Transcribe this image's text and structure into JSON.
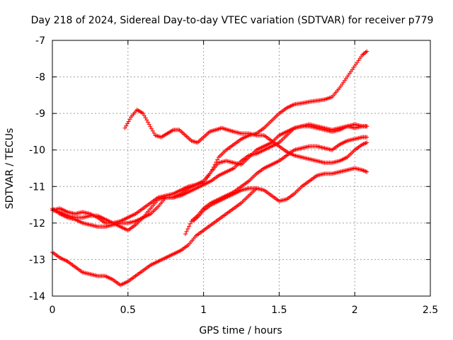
{
  "chart_data": {
    "type": "scatter",
    "title": "Day 218 of 2024, Sidereal Day-to-day VTEC variation (SDTVAR) for receiver p779",
    "xlabel": "GPS time / hours",
    "ylabel": "SDTVAR / TECUs",
    "xlim": [
      0,
      2.5
    ],
    "ylim": [
      -14,
      -7
    ],
    "xticks": [
      "0",
      "0.5",
      "1",
      "1.5",
      "2",
      "2.5"
    ],
    "yticks": [
      "-7",
      "-8",
      "-9",
      "-10",
      "-11",
      "-12",
      "-13",
      "-14"
    ],
    "xtick_values": [
      0,
      0.5,
      1,
      1.5,
      2,
      2.5
    ],
    "ytick_values": [
      -7,
      -8,
      -9,
      -10,
      -11,
      -12,
      -13,
      -14
    ],
    "grid": true,
    "legend": "none",
    "marker": "+",
    "marker_color": "#ff0000",
    "series": [
      {
        "x": [
          0,
          0.05,
          0.1,
          0.15,
          0.2,
          0.25,
          0.3,
          0.35,
          0.4,
          0.45,
          0.5,
          0.55,
          0.6,
          0.65,
          0.7,
          0.75,
          0.8,
          0.85,
          0.9,
          0.95,
          1.0,
          1.05,
          1.1,
          1.15,
          1.2,
          1.25,
          1.3,
          1.35,
          1.4,
          1.45,
          1.5,
          1.55,
          1.6,
          1.65,
          1.7,
          1.75,
          1.8,
          1.85,
          1.9,
          1.95,
          2.0,
          2.05,
          2.08
        ],
        "y": [
          -11.65,
          -11.6,
          -11.7,
          -11.75,
          -11.7,
          -11.75,
          -11.85,
          -12.0,
          -12.0,
          -11.95,
          -11.85,
          -11.75,
          -11.6,
          -11.45,
          -11.3,
          -11.25,
          -11.2,
          -11.1,
          -11.0,
          -10.95,
          -10.9,
          -10.6,
          -10.2,
          -10.0,
          -9.85,
          -9.7,
          -9.6,
          -9.55,
          -9.4,
          -9.2,
          -9.0,
          -8.85,
          -8.75,
          -8.72,
          -8.68,
          -8.65,
          -8.62,
          -8.55,
          -8.3,
          -8.0,
          -7.7,
          -7.4,
          -7.3
        ]
      },
      {
        "x": [
          0,
          0.05,
          0.1,
          0.15,
          0.2,
          0.25,
          0.3,
          0.35,
          0.4,
          0.45,
          0.5,
          0.55,
          0.6,
          0.65,
          0.7,
          0.75,
          0.8,
          0.85,
          0.9,
          0.95,
          1.0,
          1.05,
          1.1,
          1.15,
          1.2,
          1.25,
          1.3,
          1.35,
          1.4,
          1.45,
          1.5,
          1.55,
          1.6,
          1.65,
          1.7,
          1.75,
          1.8,
          1.85,
          1.9,
          1.95,
          2.0,
          2.05,
          2.08
        ],
        "y": [
          -11.6,
          -11.75,
          -11.85,
          -11.9,
          -12.0,
          -12.05,
          -12.1,
          -12.1,
          -12.05,
          -12.0,
          -12.0,
          -11.95,
          -11.85,
          -11.6,
          -11.35,
          -11.3,
          -11.3,
          -11.2,
          -11.05,
          -10.95,
          -10.85,
          -10.6,
          -10.35,
          -10.3,
          -10.35,
          -10.4,
          -10.2,
          -10.0,
          -9.9,
          -9.8,
          -9.6,
          -9.5,
          -9.4,
          -9.35,
          -9.35,
          -9.4,
          -9.45,
          -9.5,
          -9.45,
          -9.35,
          -9.3,
          -9.35,
          -9.35
        ]
      },
      {
        "x": [
          0,
          0.05,
          0.1,
          0.15,
          0.2,
          0.25,
          0.3,
          0.35,
          0.4,
          0.45,
          0.5,
          0.55,
          0.6,
          0.65,
          0.7,
          0.75,
          0.8,
          0.85,
          0.9,
          0.95,
          1.0,
          1.05,
          1.1,
          1.15,
          1.2,
          1.25,
          1.3,
          1.35,
          1.4,
          1.45,
          1.5,
          1.55,
          1.6,
          1.65,
          1.7,
          1.75,
          1.8,
          1.85,
          1.9,
          1.95,
          2.0,
          2.05,
          2.08
        ],
        "y": [
          -11.65,
          -11.7,
          -11.8,
          -11.85,
          -11.85,
          -11.8,
          -11.8,
          -11.9,
          -12.0,
          -12.1,
          -12.2,
          -12.05,
          -11.85,
          -11.75,
          -11.55,
          -11.3,
          -11.3,
          -11.25,
          -11.15,
          -11.05,
          -10.95,
          -10.85,
          -10.7,
          -10.6,
          -10.5,
          -10.3,
          -10.15,
          -10.1,
          -10.0,
          -9.9,
          -9.8,
          -9.6,
          -9.4,
          -9.35,
          -9.3,
          -9.35,
          -9.4,
          -9.45,
          -9.4,
          -9.35,
          -9.4,
          -9.35,
          -9.35
        ]
      },
      {
        "x": [
          0.48,
          0.52,
          0.56,
          0.6,
          0.64,
          0.68,
          0.72,
          0.76,
          0.8,
          0.84,
          0.88,
          0.92,
          0.96,
          1.0,
          1.04,
          1.08,
          1.12,
          1.16,
          1.2,
          1.25,
          1.3,
          1.35,
          1.4,
          1.45,
          1.5,
          1.55,
          1.6,
          1.65,
          1.7,
          1.75,
          1.8,
          1.85,
          1.9,
          1.95,
          2.0,
          2.05,
          2.08
        ],
        "y": [
          -9.4,
          -9.1,
          -8.9,
          -9.0,
          -9.3,
          -9.6,
          -9.65,
          -9.55,
          -9.45,
          -9.45,
          -9.6,
          -9.75,
          -9.8,
          -9.65,
          -9.5,
          -9.45,
          -9.4,
          -9.45,
          -9.5,
          -9.55,
          -9.55,
          -9.6,
          -9.6,
          -9.75,
          -9.9,
          -10.05,
          -10.15,
          -10.2,
          -10.25,
          -10.3,
          -10.35,
          -10.35,
          -10.3,
          -10.2,
          -10.0,
          -9.85,
          -9.8
        ]
      },
      {
        "x": [
          0.88,
          0.92,
          0.96,
          1.0,
          1.05,
          1.1,
          1.15,
          1.2,
          1.25,
          1.3,
          1.35,
          1.4,
          1.45,
          1.5,
          1.55,
          1.6,
          1.65,
          1.7,
          1.75,
          1.8,
          1.85,
          1.9,
          1.95,
          2.0,
          2.05,
          2.08
        ],
        "y": [
          -12.3,
          -11.95,
          -11.8,
          -11.6,
          -11.45,
          -11.35,
          -11.25,
          -11.15,
          -11.0,
          -10.85,
          -10.65,
          -10.5,
          -10.4,
          -10.3,
          -10.15,
          -10.0,
          -9.95,
          -9.9,
          -9.9,
          -9.95,
          -10.0,
          -9.85,
          -9.75,
          -9.7,
          -9.65,
          -9.65
        ]
      },
      {
        "x": [
          0.93,
          0.97,
          1.0,
          1.05,
          1.1,
          1.15,
          1.2,
          1.25,
          1.3,
          1.35,
          1.4,
          1.45,
          1.5,
          1.55,
          1.6,
          1.65,
          1.7,
          1.75,
          1.8,
          1.85,
          1.9,
          1.95,
          2.0,
          2.05,
          2.08
        ],
        "y": [
          -11.95,
          -11.8,
          -11.65,
          -11.5,
          -11.4,
          -11.3,
          -11.2,
          -11.1,
          -11.05,
          -11.05,
          -11.1,
          -11.25,
          -11.4,
          -11.35,
          -11.2,
          -11.0,
          -10.85,
          -10.7,
          -10.65,
          -10.65,
          -10.6,
          -10.55,
          -10.5,
          -10.55,
          -10.6
        ]
      },
      {
        "x": [
          0,
          0.05,
          0.1,
          0.15,
          0.2,
          0.25,
          0.3,
          0.35,
          0.4,
          0.45,
          0.5,
          0.55,
          0.6,
          0.65,
          0.7,
          0.75,
          0.8,
          0.85,
          0.9,
          0.95,
          1.0,
          1.05,
          1.1,
          1.15,
          1.2,
          1.25,
          1.3,
          1.35
        ],
        "y": [
          -12.8,
          -12.95,
          -13.05,
          -13.2,
          -13.35,
          -13.4,
          -13.45,
          -13.45,
          -13.55,
          -13.7,
          -13.6,
          -13.45,
          -13.3,
          -13.15,
          -13.05,
          -12.95,
          -12.85,
          -12.75,
          -12.6,
          -12.35,
          -12.2,
          -12.05,
          -11.9,
          -11.75,
          -11.6,
          -11.45,
          -11.25,
          -11.05
        ]
      }
    ]
  }
}
